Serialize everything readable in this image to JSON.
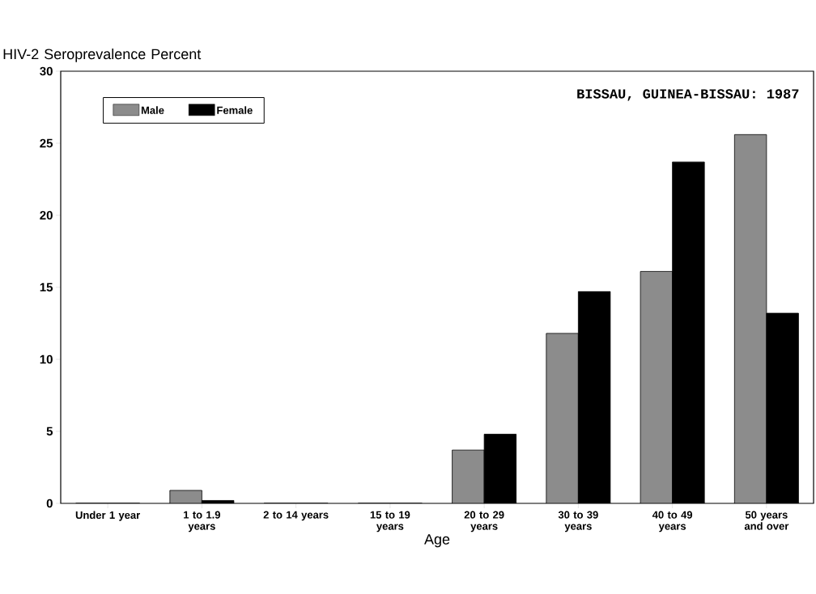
{
  "chart_data": {
    "type": "bar",
    "ylabel": "HIV-2 Seroprevalence Percent",
    "xlabel": "Age",
    "categories": [
      "Under 1 year",
      "1 to 1.9 years",
      "2 to 14 years",
      "15 to 19 years",
      "20 to 29 years",
      "30 to 39 years",
      "40 to 49 years",
      "50 years and over"
    ],
    "series": [
      {
        "name": "Male",
        "color": "#8c8c8c",
        "values": [
          0,
          0.9,
          0,
          0,
          3.7,
          11.8,
          16.1,
          25.6
        ]
      },
      {
        "name": "Female",
        "color": "#000000",
        "values": [
          0,
          0.2,
          0,
          0,
          4.8,
          14.7,
          23.7,
          13.2
        ]
      }
    ],
    "ylim": [
      0,
      30
    ],
    "yticks": [
      0,
      5,
      10,
      15,
      20,
      25,
      30
    ],
    "legend": "top left",
    "annotations": [
      "BISSAU, GUINEA-BISSAU:  1987"
    ]
  }
}
